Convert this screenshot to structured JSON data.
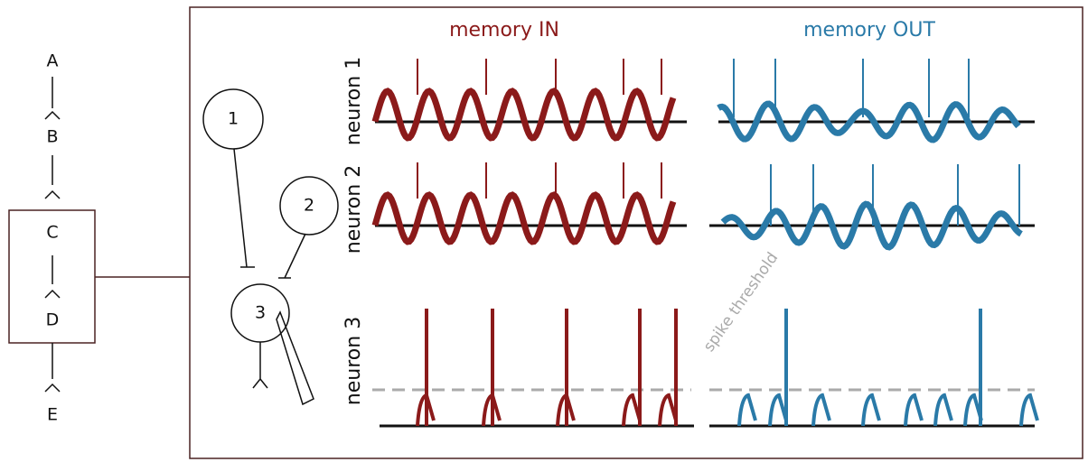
{
  "chain": {
    "labels": [
      "A",
      "B",
      "C",
      "D",
      "E"
    ]
  },
  "nodes": [
    {
      "label": "1"
    },
    {
      "label": "2"
    },
    {
      "label": "3"
    }
  ],
  "columns": [
    {
      "title": "memory IN"
    },
    {
      "title": "memory OUT"
    }
  ],
  "rows": [
    {
      "label": "neuron 1"
    },
    {
      "label": "neuron 2"
    },
    {
      "label": "neuron 3"
    }
  ],
  "threshold_label": "spike threshold"
}
